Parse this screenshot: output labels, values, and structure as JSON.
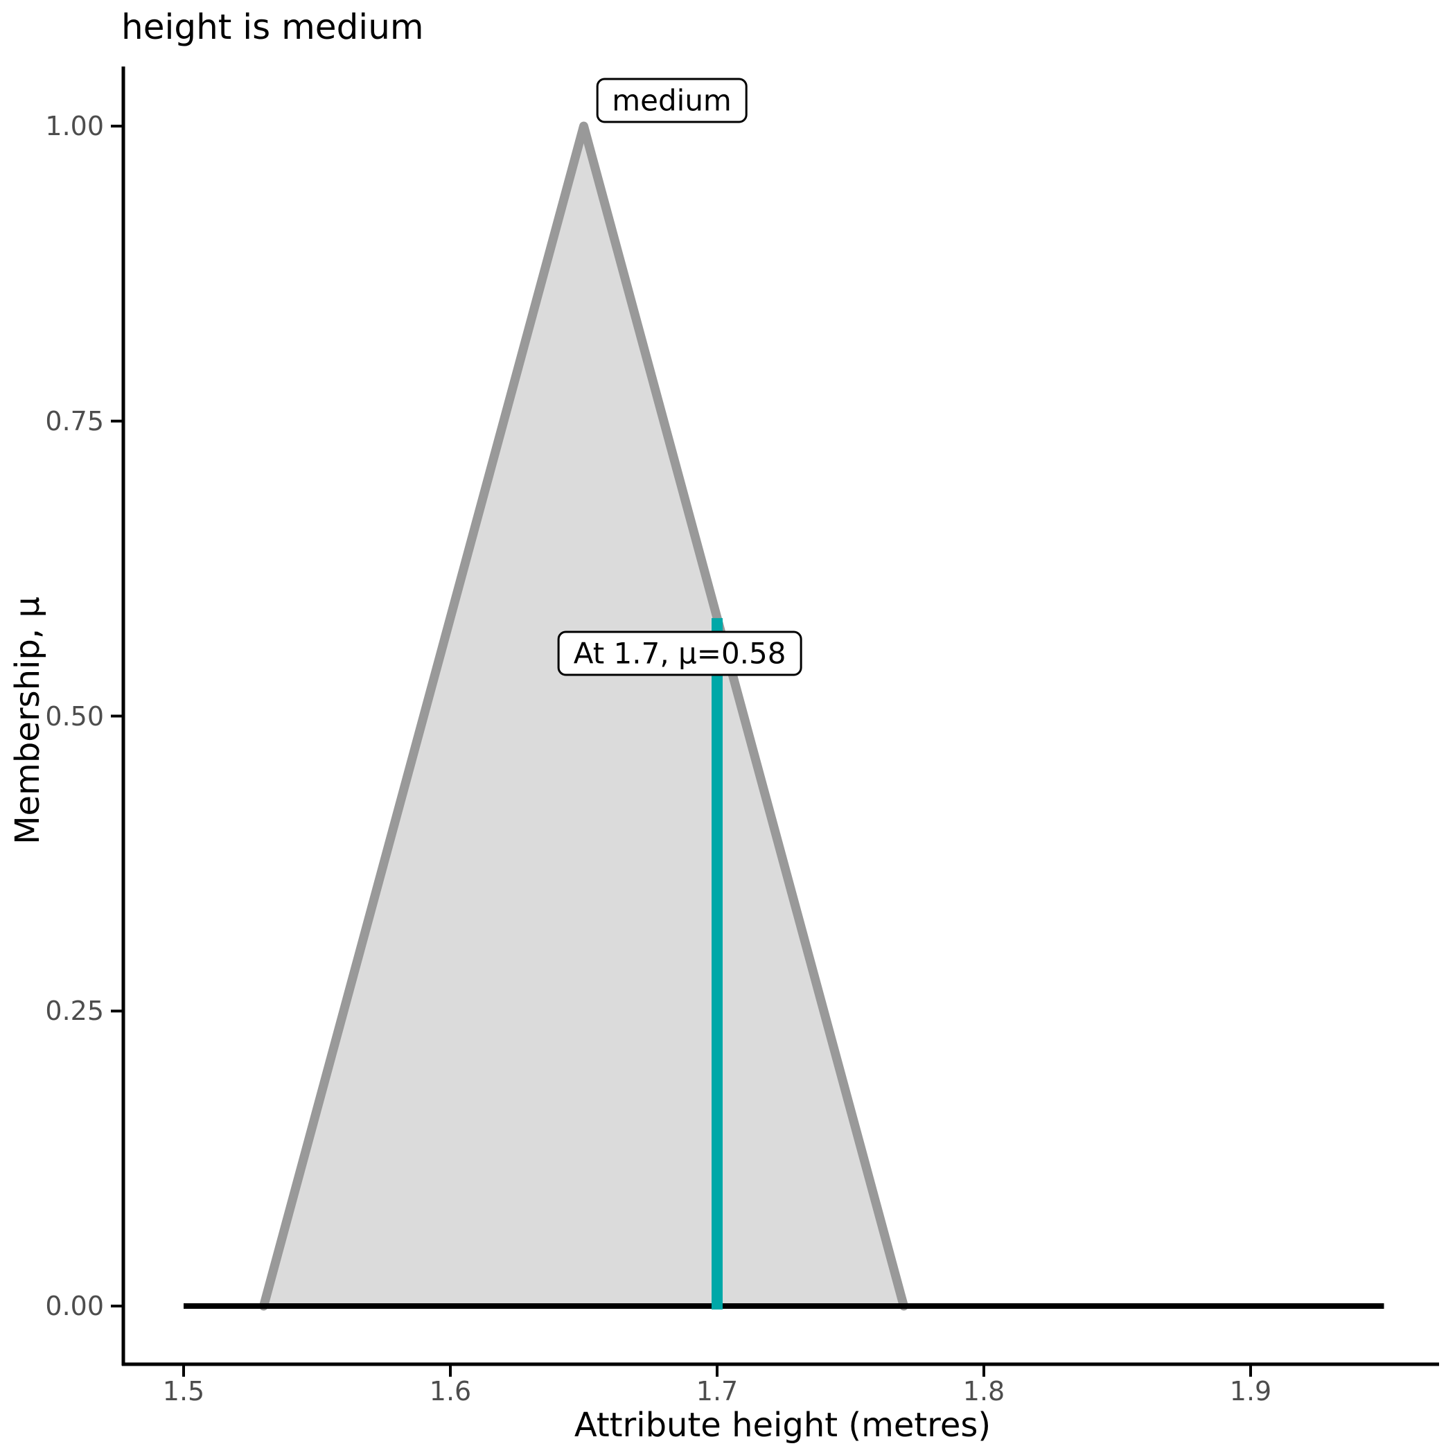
{
  "title": "height is medium",
  "x_axis": {
    "label": "Attribute height (metres)",
    "ticks": [
      {
        "value": 1.5,
        "label": "1.5"
      },
      {
        "value": 1.6,
        "label": "1.6"
      },
      {
        "value": 1.7,
        "label": "1.7"
      },
      {
        "value": 1.8,
        "label": "1.8"
      },
      {
        "value": 1.9,
        "label": "1.9"
      }
    ]
  },
  "y_axis": {
    "label": "Membership, μ",
    "ticks": [
      {
        "value": 0,
        "label": "0.00"
      },
      {
        "value": 0.25,
        "label": "0.25"
      },
      {
        "value": 0.5,
        "label": "0.50"
      },
      {
        "value": 0.75,
        "label": "0.75"
      },
      {
        "value": 1,
        "label": "1.00"
      }
    ]
  },
  "colors": {
    "membership_fill": "#DBDBDB",
    "membership_stroke": "#999999",
    "highlight": "#00A8A8",
    "baseline": "#000000",
    "axis_line": "#000000",
    "tick_text": "#4D4D4D",
    "title_text": "#000000",
    "label_box_bg": "#FFFFFF",
    "label_box_border": "#000000"
  },
  "chart_data": {
    "type": "area",
    "title": "height is medium",
    "xlabel": "Attribute height (metres)",
    "ylabel": "Membership, μ",
    "xlim": [
      1.477,
      1.971
    ],
    "ylim": [
      0,
      1.06
    ],
    "grid": false,
    "legend": false,
    "series": [
      {
        "name": "zero-baseline",
        "kind": "line",
        "points": [
          [
            1.5,
            0
          ],
          [
            1.95,
            0
          ]
        ]
      },
      {
        "name": "medium-membership-function",
        "kind": "triangular-membership",
        "points": [
          [
            1.53,
            0
          ],
          [
            1.65,
            1
          ],
          [
            1.77,
            0
          ]
        ]
      }
    ],
    "annotations": {
      "set_label": {
        "text": "medium",
        "x": 1.683,
        "mu": 1.022
      },
      "value_label": {
        "text": "At 1.7, μ=0.58",
        "x": 1.686,
        "mu": 0.553
      },
      "highlight_line": {
        "x": 1.7,
        "mu_from": 0,
        "mu_to": 0.583
      }
    }
  }
}
